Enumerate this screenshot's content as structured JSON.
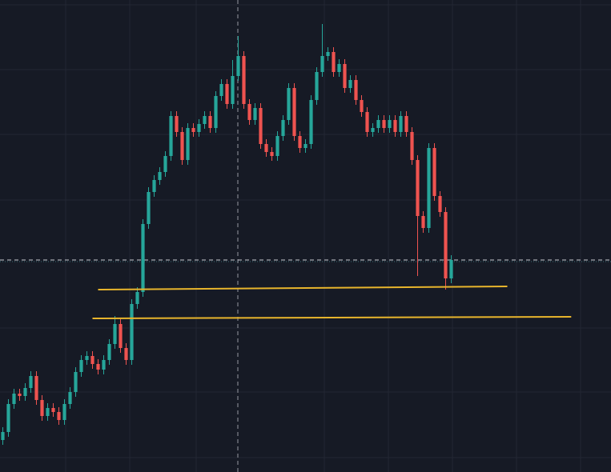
{
  "chart_data": {
    "type": "candlestick",
    "xlim": [
      -0.5,
      108.5
    ],
    "ylim": [
      0,
      590
    ],
    "up_color": "#26a69a",
    "down_color": "#ef5350",
    "price_line": true,
    "open": [
      40,
      50,
      85,
      98,
      95,
      105,
      120,
      90,
      70,
      80,
      75,
      65,
      85,
      100,
      125,
      140,
      145,
      135,
      128,
      140,
      160,
      185,
      155,
      140,
      210,
      225,
      310,
      350,
      365,
      375,
      395,
      445,
      425,
      390,
      430,
      425,
      435,
      445,
      430,
      470,
      485,
      460,
      495,
      520,
      460,
      440,
      455,
      410,
      400,
      395,
      420,
      440,
      480,
      420,
      405,
      410,
      465,
      500,
      520,
      525,
      500,
      510,
      480,
      490,
      465,
      450,
      425,
      430,
      440,
      430,
      440,
      425,
      445,
      425,
      390,
      320,
      305,
      405,
      345,
      325,
      242
    ],
    "high": [
      56,
      91,
      104,
      104,
      111,
      126,
      126,
      96,
      86,
      86,
      81,
      91,
      106,
      131,
      146,
      151,
      151,
      141,
      146,
      166,
      195,
      191,
      161,
      216,
      231,
      316,
      356,
      371,
      381,
      401,
      451,
      451,
      431,
      436,
      436,
      441,
      451,
      451,
      476,
      491,
      491,
      515,
      545,
      526,
      466,
      461,
      461,
      416,
      406,
      426,
      446,
      486,
      486,
      426,
      416,
      471,
      506,
      560,
      531,
      531,
      516,
      516,
      496,
      496,
      471,
      456,
      436,
      446,
      446,
      446,
      446,
      451,
      451,
      431,
      396,
      326,
      411,
      411,
      351,
      331,
      271
    ],
    "low": [
      34,
      44,
      79,
      89,
      89,
      99,
      84,
      64,
      64,
      69,
      59,
      59,
      79,
      94,
      119,
      134,
      129,
      122,
      122,
      134,
      154,
      149,
      134,
      134,
      204,
      219,
      304,
      344,
      359,
      369,
      389,
      419,
      384,
      384,
      419,
      419,
      429,
      424,
      424,
      464,
      454,
      454,
      489,
      454,
      434,
      434,
      404,
      394,
      389,
      389,
      414,
      434,
      414,
      399,
      399,
      404,
      459,
      494,
      514,
      494,
      494,
      474,
      474,
      459,
      444,
      419,
      419,
      424,
      424,
      424,
      419,
      419,
      419,
      384,
      245,
      299,
      299,
      339,
      319,
      228,
      236
    ],
    "close": [
      50,
      85,
      98,
      95,
      105,
      120,
      90,
      70,
      80,
      75,
      65,
      85,
      100,
      125,
      140,
      145,
      135,
      128,
      140,
      160,
      185,
      155,
      140,
      210,
      225,
      310,
      350,
      365,
      375,
      395,
      445,
      425,
      390,
      430,
      425,
      435,
      445,
      430,
      470,
      485,
      460,
      495,
      520,
      460,
      440,
      455,
      410,
      400,
      395,
      420,
      440,
      480,
      420,
      405,
      410,
      465,
      500,
      520,
      525,
      500,
      510,
      480,
      490,
      465,
      450,
      425,
      430,
      440,
      430,
      440,
      425,
      445,
      425,
      390,
      320,
      305,
      405,
      345,
      325,
      242,
      265
    ],
    "levels": [
      {
        "color": "#e8b52c",
        "x": [
          17,
          90
        ],
        "values": [
          228,
          232
        ]
      },
      {
        "color": "#e8b52c",
        "x": [
          16,
          101.4
        ],
        "values": [
          192,
          194
        ]
      }
    ]
  }
}
